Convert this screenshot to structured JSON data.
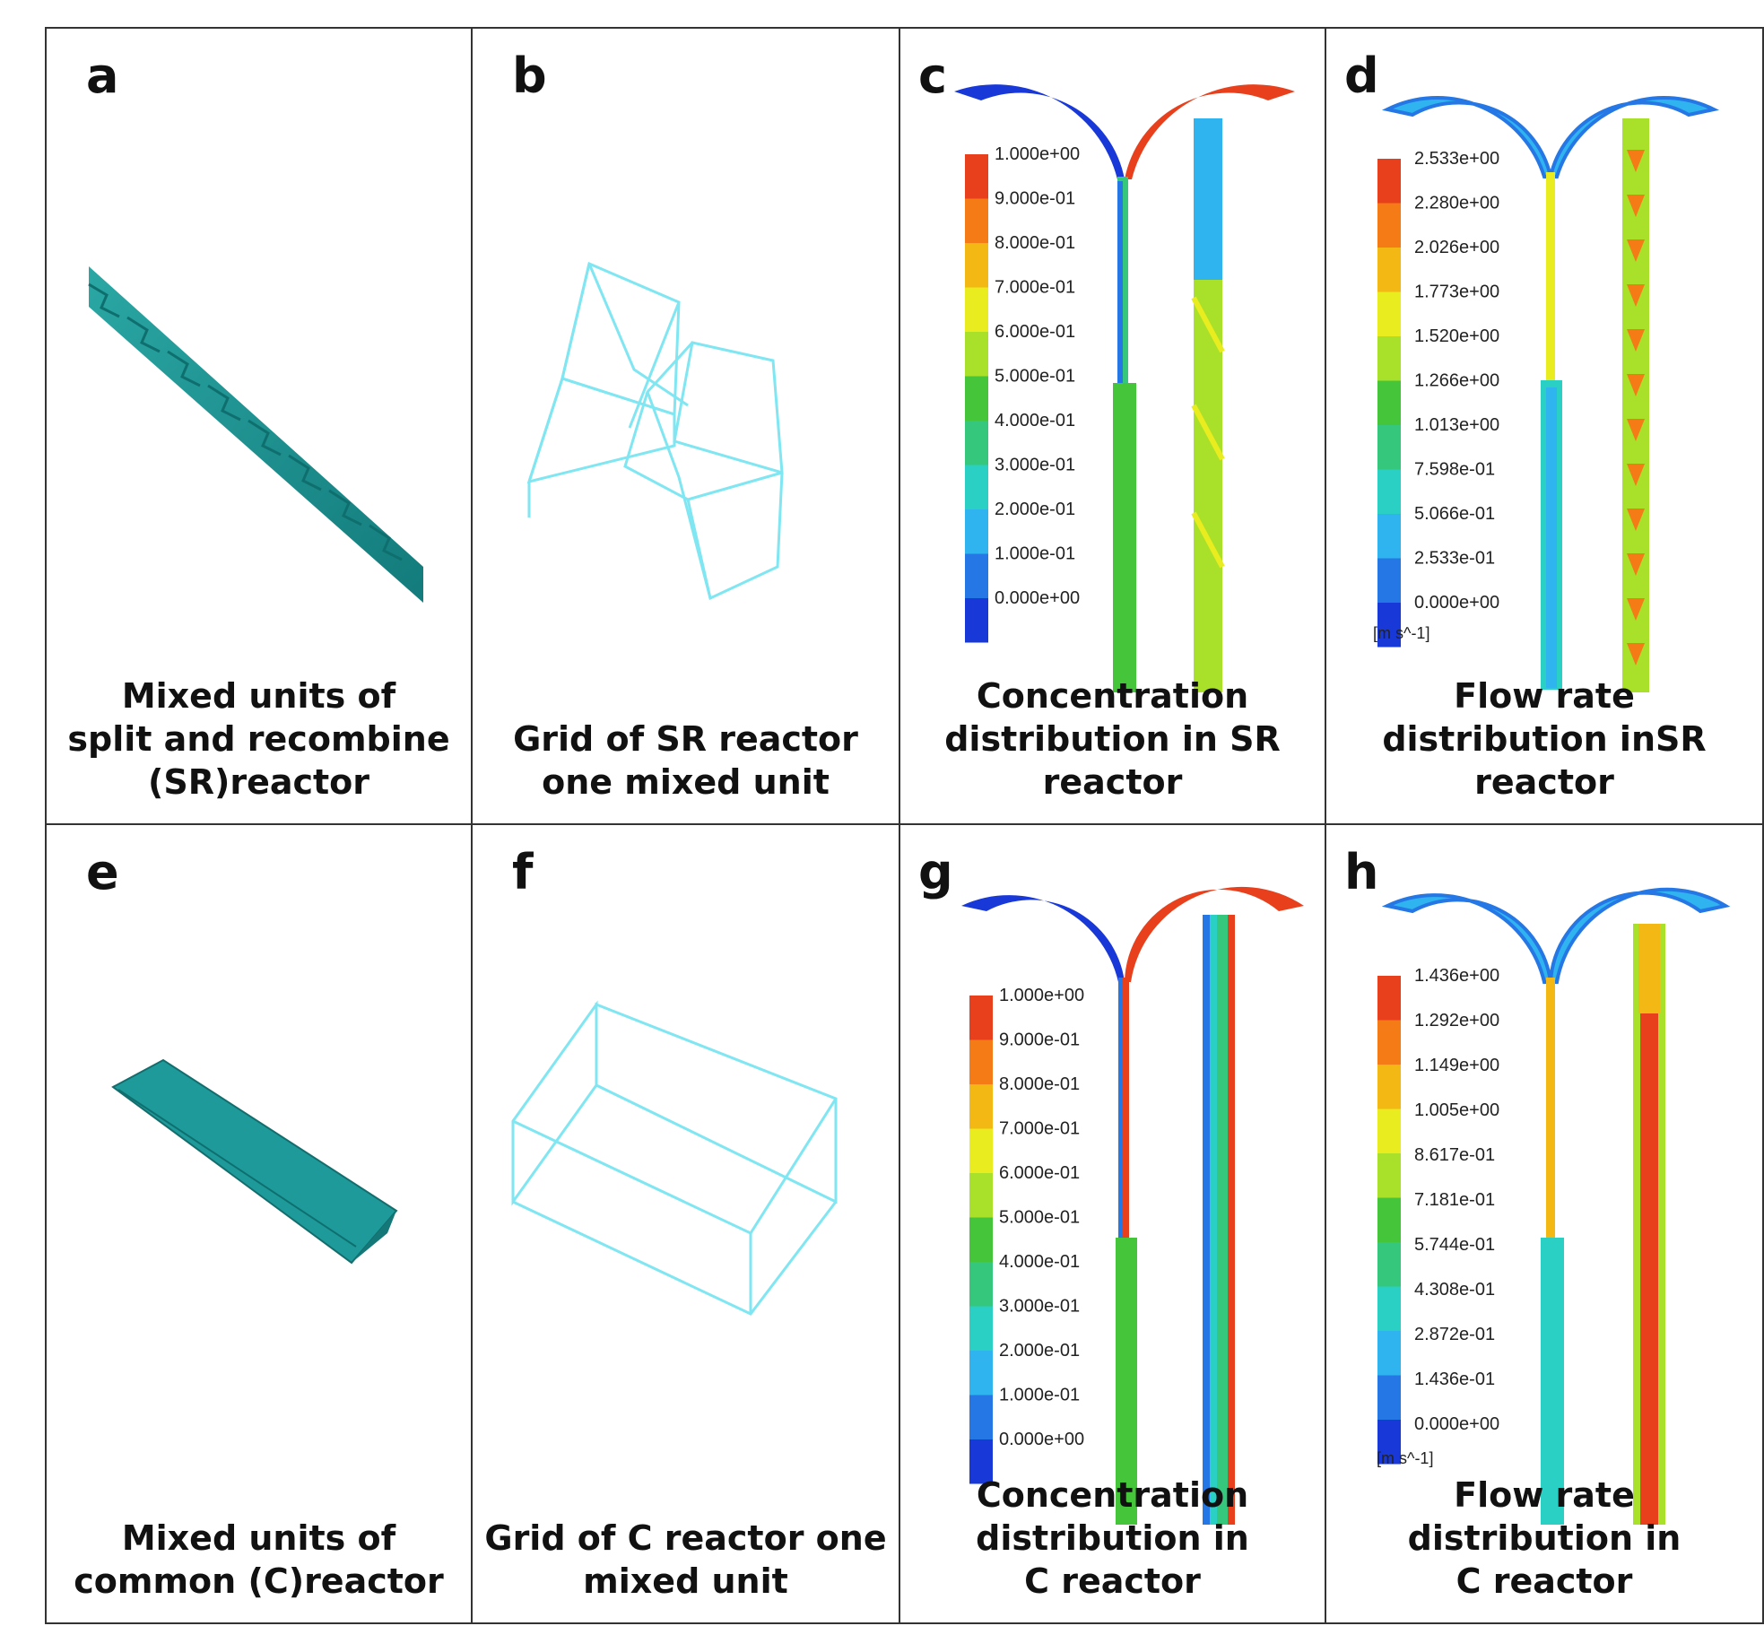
{
  "panels": [
    {
      "letter": "a",
      "caption": [
        "Mixed units of",
        "split and recombine",
        "(SR)reactor"
      ]
    },
    {
      "letter": "b",
      "caption": [
        "Grid of SR reactor",
        "one mixed unit"
      ]
    },
    {
      "letter": "c",
      "caption": [
        "Concentration",
        "distribution in SR",
        "reactor"
      ]
    },
    {
      "letter": "d",
      "caption": [
        "Flow rate",
        "distribution inSR",
        "reactor"
      ]
    },
    {
      "letter": "e",
      "caption": [
        "Mixed units of",
        "common (C)reactor"
      ]
    },
    {
      "letter": "f",
      "caption": [
        "Grid of C reactor one",
        "mixed unit"
      ]
    },
    {
      "letter": "g",
      "caption": [
        "Concentration",
        "distribution in",
        "C reactor"
      ]
    },
    {
      "letter": "h",
      "caption": [
        "Flow rate",
        "distribution in",
        "C reactor"
      ]
    }
  ],
  "legends": {
    "concentration": [
      "1.000e+00",
      "9.000e-01",
      "8.000e-01",
      "7.000e-01",
      "6.000e-01",
      "5.000e-01",
      "4.000e-01",
      "3.000e-01",
      "2.000e-01",
      "1.000e-01",
      "0.000e+00"
    ],
    "velocity_sr": [
      "2.533e+00",
      "2.280e+00",
      "2.026e+00",
      "1.773e+00",
      "1.520e+00",
      "1.266e+00",
      "1.013e+00",
      "7.598e-01",
      "5.066e-01",
      "2.533e-01",
      "0.000e+00"
    ],
    "velocity_c": [
      "1.436e+00",
      "1.292e+00",
      "1.149e+00",
      "1.005e+00",
      "8.617e-01",
      "7.181e-01",
      "5.744e-01",
      "4.308e-01",
      "2.872e-01",
      "1.436e-01",
      "0.000e+00"
    ],
    "unit": "[m s^-1]"
  },
  "colors": {
    "colormap": [
      "#e8401c",
      "#f47b15",
      "#f3b814",
      "#e9ec1e",
      "#a9e02a",
      "#45c63a",
      "#35c77b",
      "#2ad0c4",
      "#30b4f0",
      "#2577e6",
      "#1838d8"
    ],
    "model_teal": "#1e9a9a",
    "grid_cyan": "#7fe6f2"
  }
}
